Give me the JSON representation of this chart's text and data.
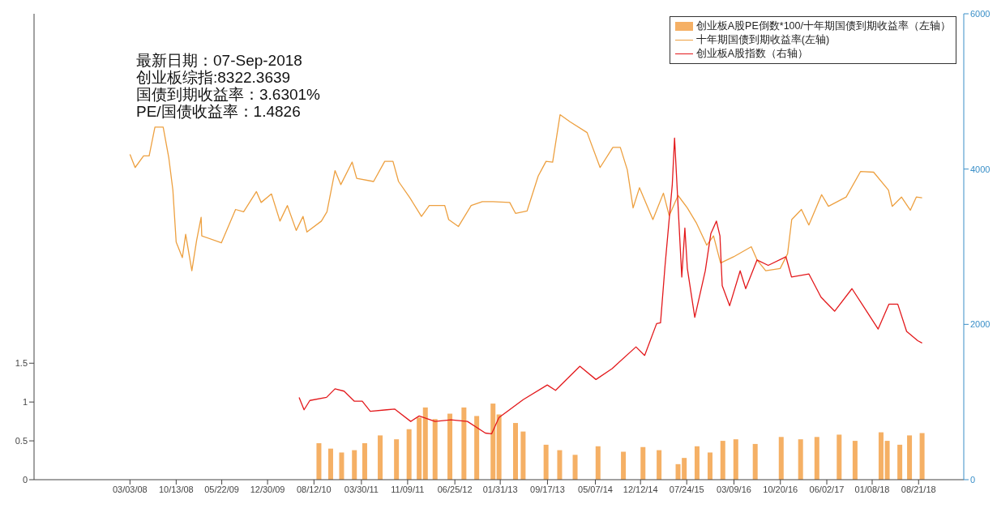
{
  "chart_data": {
    "type": "line",
    "annotations": [
      "最新日期：07-Sep-2018",
      "创业板综指:8322.3639",
      "国债到期收益率：3.6301%",
      "PE/国债收益率：1.4826"
    ],
    "xlim": [
      "2006-11-24",
      "2019-03-28"
    ],
    "xticks": [
      {
        "value": "2008-03-03",
        "label": "03/03/08"
      },
      {
        "value": "2008-10-13",
        "label": "10/13/08"
      },
      {
        "value": "2009-05-22",
        "label": "05/22/09"
      },
      {
        "value": "2009-12-30",
        "label": "12/30/09"
      },
      {
        "value": "2010-08-12",
        "label": "08/12/10"
      },
      {
        "value": "2011-03-30",
        "label": "03/30/11"
      },
      {
        "value": "2011-11-09",
        "label": "11/09/11"
      },
      {
        "value": "2012-06-25",
        "label": "06/25/12"
      },
      {
        "value": "2013-01-31",
        "label": "01/31/13"
      },
      {
        "value": "2013-09-17",
        "label": "09/17/13"
      },
      {
        "value": "2014-05-07",
        "label": "05/07/14"
      },
      {
        "value": "2014-12-12",
        "label": "12/12/14"
      },
      {
        "value": "2015-07-24",
        "label": "07/24/15"
      },
      {
        "value": "2016-03-09",
        "label": "03/09/16"
      },
      {
        "value": "2016-10-20",
        "label": "10/20/16"
      },
      {
        "value": "2017-06-02",
        "label": "06/02/17"
      },
      {
        "value": "2018-01-08",
        "label": "01/08/18"
      },
      {
        "value": "2018-08-21",
        "label": "08/21/18"
      }
    ],
    "ylim": [
      0,
      6
    ],
    "yticks": [
      0,
      0.5,
      1,
      1.5
    ],
    "y2lim": [
      0,
      6000
    ],
    "y2ticks": [
      0,
      2000,
      4000,
      6000
    ],
    "legend": "top right",
    "series": [
      {
        "name": "创业板A股PE倒数*100/十年期国债到期收益率（左轴）",
        "type": "bar",
        "color": "#f5b065",
        "x": [
          "2010-09-05",
          "2010-11-01",
          "2010-12-24",
          "2011-02-24",
          "2011-04-15",
          "2011-06-29",
          "2011-09-16",
          "2011-11-16",
          "2012-01-04",
          "2012-02-03",
          "2012-03-21",
          "2012-06-01",
          "2012-08-08",
          "2012-10-09",
          "2012-12-27",
          "2013-01-25",
          "2013-04-15",
          "2013-05-22",
          "2013-09-10",
          "2013-11-15",
          "2014-01-29",
          "2014-05-20",
          "2014-09-20",
          "2014-12-24",
          "2015-03-12",
          "2015-06-12",
          "2015-07-12",
          "2015-09-12",
          "2015-11-14",
          "2016-01-15",
          "2016-03-18",
          "2016-06-20",
          "2016-10-24",
          "2017-01-26",
          "2017-04-15",
          "2017-08-01",
          "2017-10-17",
          "2018-02-20",
          "2018-03-22",
          "2018-05-22",
          "2018-07-08",
          "2018-09-07"
        ],
        "values": [
          0.47,
          0.4,
          0.35,
          0.38,
          0.47,
          0.57,
          0.52,
          0.65,
          0.8,
          0.93,
          0.78,
          0.85,
          0.93,
          0.82,
          0.98,
          0.84,
          0.73,
          0.62,
          0.45,
          0.38,
          0.32,
          0.43,
          0.36,
          0.42,
          0.38,
          0.2,
          0.28,
          0.43,
          0.35,
          0.5,
          0.52,
          0.46,
          0.55,
          0.52,
          0.55,
          0.58,
          0.5,
          0.61,
          0.5,
          0.45,
          0.57,
          0.6
        ]
      },
      {
        "name": "十年期国债到期收益率(左轴)",
        "color": "#eda040",
        "x": [
          "2008-03-03",
          "2008-03-28",
          "2008-05-08",
          "2008-06-04",
          "2008-07-02",
          "2008-08-11",
          "2008-09-07",
          "2008-09-27",
          "2008-10-13",
          "2008-11-12",
          "2008-11-28",
          "2008-12-28",
          "2009-01-20",
          "2009-02-11",
          "2009-02-14",
          "2009-05-20",
          "2009-07-28",
          "2009-09-05",
          "2009-11-06",
          "2009-11-29",
          "2010-01-18",
          "2010-02-28",
          "2010-04-05",
          "2010-05-18",
          "2010-06-20",
          "2010-07-09",
          "2010-09-17",
          "2010-10-14",
          "2010-11-22",
          "2010-12-20",
          "2011-02-13",
          "2011-03-07",
          "2011-05-28",
          "2011-07-21",
          "2011-08-30",
          "2011-09-26",
          "2011-11-20",
          "2012-01-15",
          "2012-02-22",
          "2012-05-07",
          "2012-05-26",
          "2012-07-12",
          "2012-09-12",
          "2012-11-05",
          "2012-12-27",
          "2013-03-18",
          "2013-04-15",
          "2013-06-10",
          "2013-08-03",
          "2013-08-19",
          "2013-09-10",
          "2013-10-12",
          "2013-11-17",
          "2014-01-04",
          "2014-03-28",
          "2014-05-30",
          "2014-07-31",
          "2014-09-05",
          "2014-10-09",
          "2014-11-06",
          "2014-12-07",
          "2015-02-10",
          "2015-04-02",
          "2015-04-30",
          "2015-06-12",
          "2015-07-27",
          "2015-09-08",
          "2015-10-29",
          "2015-12-01",
          "2016-01-04",
          "2016-03-07",
          "2016-06-01",
          "2016-06-29",
          "2016-08-10",
          "2016-10-19",
          "2016-11-24",
          "2016-12-14",
          "2017-01-30",
          "2017-03-07",
          "2017-05-08",
          "2017-06-10",
          "2017-09-04",
          "2017-11-13",
          "2018-01-15",
          "2018-03-28",
          "2018-04-15",
          "2018-05-30",
          "2018-07-12",
          "2018-08-10",
          "2018-09-07"
        ],
        "values": [
          4.19,
          4.02,
          4.17,
          4.17,
          4.54,
          4.54,
          4.15,
          3.73,
          3.06,
          2.86,
          3.16,
          2.69,
          3.08,
          3.38,
          3.14,
          3.05,
          3.48,
          3.45,
          3.71,
          3.57,
          3.68,
          3.33,
          3.53,
          3.21,
          3.39,
          3.19,
          3.33,
          3.45,
          3.98,
          3.8,
          4.09,
          3.88,
          3.84,
          4.1,
          4.1,
          3.84,
          3.63,
          3.39,
          3.53,
          3.53,
          3.35,
          3.26,
          3.53,
          3.58,
          3.58,
          3.57,
          3.43,
          3.46,
          3.91,
          3.99,
          4.1,
          4.09,
          4.7,
          4.61,
          4.47,
          4.02,
          4.28,
          4.28,
          3.99,
          3.5,
          3.76,
          3.35,
          3.69,
          3.4,
          3.66,
          3.5,
          3.31,
          3.02,
          3.14,
          2.79,
          2.87,
          3.0,
          2.83,
          2.69,
          2.72,
          2.91,
          3.35,
          3.48,
          3.28,
          3.67,
          3.52,
          3.64,
          3.97,
          3.96,
          3.73,
          3.52,
          3.64,
          3.47,
          3.64,
          3.63
        ]
      },
      {
        "name": "创业板A股指数（右轴）",
        "axis": "y2",
        "color": "#e3191c",
        "x": [
          "2010-06-01",
          "2010-06-25",
          "2010-07-23",
          "2010-10-12",
          "2010-11-22",
          "2011-01-05",
          "2011-02-24",
          "2011-04-03",
          "2011-05-12",
          "2011-07-30",
          "2011-09-07",
          "2011-11-24",
          "2012-01-04",
          "2012-03-21",
          "2012-06-06",
          "2012-08-25",
          "2012-11-20",
          "2012-12-20",
          "2013-01-25",
          "2013-05-22",
          "2013-09-16",
          "2013-10-26",
          "2014-02-21",
          "2014-05-10",
          "2014-07-27",
          "2014-11-20",
          "2015-01-01",
          "2015-02-28",
          "2015-03-19",
          "2015-04-10",
          "2015-05-15",
          "2015-05-26",
          "2015-06-30",
          "2015-07-15",
          "2015-07-27",
          "2015-09-01",
          "2015-10-22",
          "2015-11-18",
          "2015-12-15",
          "2016-01-01",
          "2016-01-12",
          "2016-02-17",
          "2016-04-08",
          "2016-05-05",
          "2016-06-29",
          "2016-08-22",
          "2016-11-16",
          "2016-12-13",
          "2017-03-07",
          "2017-05-05",
          "2017-07-10",
          "2017-10-02",
          "2017-11-25",
          "2018-02-06",
          "2018-03-30",
          "2018-05-12",
          "2018-06-24",
          "2018-08-17",
          "2018-09-07"
        ],
        "values": [
          1060,
          900,
          1020,
          1060,
          1170,
          1140,
          1010,
          1010,
          880,
          900,
          910,
          750,
          820,
          750,
          770,
          750,
          600,
          590,
          800,
          1030,
          1220,
          1150,
          1460,
          1290,
          1430,
          1710,
          1600,
          2010,
          2020,
          2760,
          3800,
          4400,
          2610,
          3240,
          2720,
          2090,
          2690,
          3170,
          3330,
          3140,
          2500,
          2240,
          2690,
          2460,
          2830,
          2760,
          2870,
          2610,
          2650,
          2350,
          2170,
          2460,
          2240,
          1940,
          2260,
          2260,
          1910,
          1790,
          1760
        ]
      }
    ]
  }
}
